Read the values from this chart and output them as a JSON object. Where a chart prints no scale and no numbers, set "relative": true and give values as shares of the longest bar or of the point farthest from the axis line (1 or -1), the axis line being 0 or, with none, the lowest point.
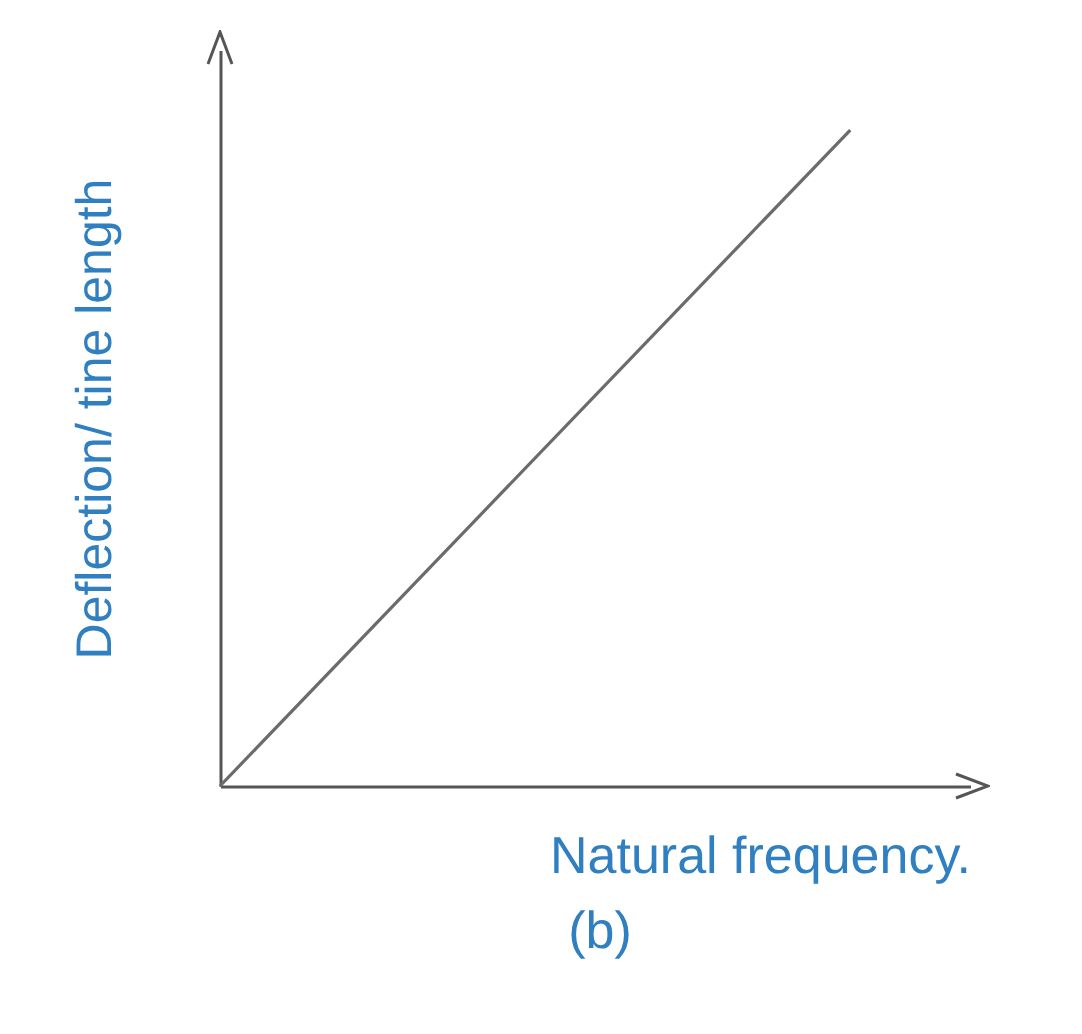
{
  "chart_data": {
    "type": "line",
    "relative": true,
    "xlabel": "Natural frequency.",
    "ylabel": "Deflection/ tine length",
    "annotations": [
      "(b)"
    ],
    "categories": [
      null,
      null
    ],
    "series": [
      {
        "color": "#6b6b6b",
        "values": [
          0,
          1
        ]
      }
    ],
    "marker": "none"
  }
}
